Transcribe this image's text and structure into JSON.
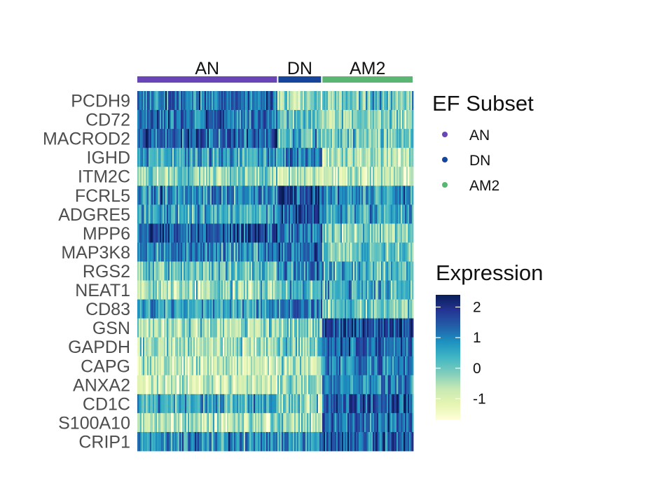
{
  "chart_data": {
    "type": "heatmap",
    "title": "",
    "xlabel": "",
    "ylabel": "",
    "genes": [
      "PCDH9",
      "CD72",
      "MACROD2",
      "IGHD",
      "ITM2C",
      "FCRL5",
      "ADGRE5",
      "MPP6",
      "MAP3K8",
      "RGS2",
      "NEAT1",
      "CD83",
      "GSN",
      "GAPDH",
      "CAPG",
      "ANXA2",
      "CD1C",
      "S100A10",
      "CRIP1"
    ],
    "groups": [
      {
        "name": "AN",
        "color": "#6a45b5",
        "cell_fraction": 0.51
      },
      {
        "name": "DN",
        "color": "#17459a",
        "cell_fraction": 0.16
      },
      {
        "name": "AM2",
        "color": "#5cb673",
        "cell_fraction": 0.33
      }
    ],
    "mean_expression": {
      "AN": [
        1.2,
        1.1,
        1.4,
        0.6,
        -0.3,
        1.0,
        0.5,
        1.6,
        0.9,
        0.0,
        -0.4,
        0.6,
        -0.5,
        -0.4,
        -0.8,
        -0.9,
        0.5,
        -0.6,
        0.8
      ],
      "DN": [
        -0.3,
        0.2,
        0.3,
        1.0,
        -0.7,
        1.7,
        1.5,
        1.2,
        1.3,
        1.0,
        0.3,
        1.2,
        -0.2,
        -0.1,
        -0.4,
        -0.4,
        -0.3,
        -0.5,
        0.8
      ],
      "AM2": [
        0.1,
        -0.2,
        -0.1,
        -0.6,
        -0.9,
        0.8,
        0.5,
        -0.3,
        0.1,
        0.5,
        0.4,
        -0.1,
        1.7,
        1.3,
        1.0,
        0.9,
        1.5,
        1.2,
        1.5
      ]
    },
    "legend": {
      "groups_title": "EF Subset",
      "colorbar_title": "Expression",
      "colorbar_ticks": [
        2,
        1,
        0,
        -1
      ],
      "colorbar_range": [
        -1.7,
        2.4
      ],
      "colorbar_colors": [
        "#ffffd9",
        "#e6f5b2",
        "#c7e9b4",
        "#7fcdbb",
        "#41b6c4",
        "#1d91c0",
        "#225ea8",
        "#253494",
        "#081d58"
      ]
    }
  }
}
